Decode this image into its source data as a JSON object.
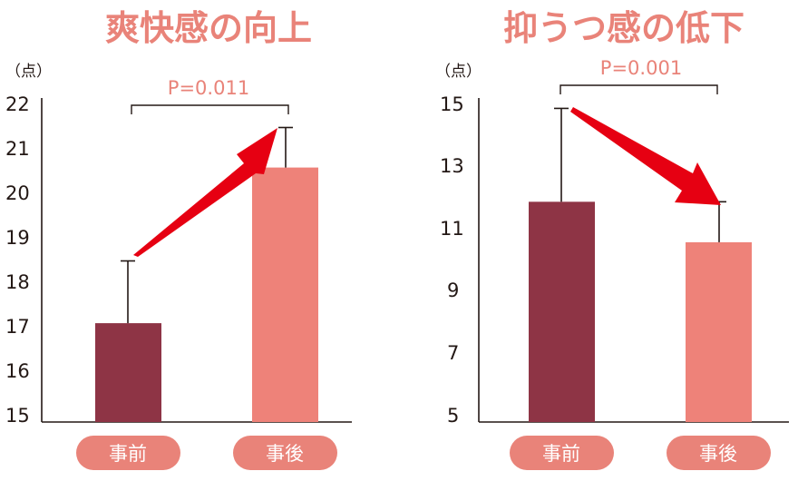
{
  "colors": {
    "before": "#8e3445",
    "after": "#ee8279",
    "title": "#e98379",
    "pvalue": "#e98379",
    "arrow": "#e60012",
    "axis": "#231815",
    "pill": "#e98379",
    "pill_text": "#ffffff"
  },
  "chart_data": [
    {
      "type": "bar",
      "title": "爽快感の向上",
      "unit_label": "（点）",
      "categories": [
        "事前",
        "事後"
      ],
      "values": [
        17.1,
        20.6
      ],
      "error_upper": [
        18.5,
        21.5
      ],
      "ylim": [
        15,
        22
      ],
      "yticks": [
        "15",
        "16",
        "17",
        "18",
        "19",
        "20",
        "21",
        "22"
      ],
      "p_value": "P=0.011",
      "arrow": "up",
      "grid": false
    },
    {
      "type": "bar",
      "title": "抑うつ感の低下",
      "unit_label": "（点）",
      "categories": [
        "事前",
        "事後"
      ],
      "values": [
        11.9,
        10.6
      ],
      "error_upper": [
        14.9,
        11.9
      ],
      "ylim": [
        5,
        15
      ],
      "yticks": [
        "5",
        "7",
        "9",
        "11",
        "13",
        "15"
      ],
      "p_value": "P=0.001",
      "arrow": "down",
      "grid": false
    }
  ]
}
